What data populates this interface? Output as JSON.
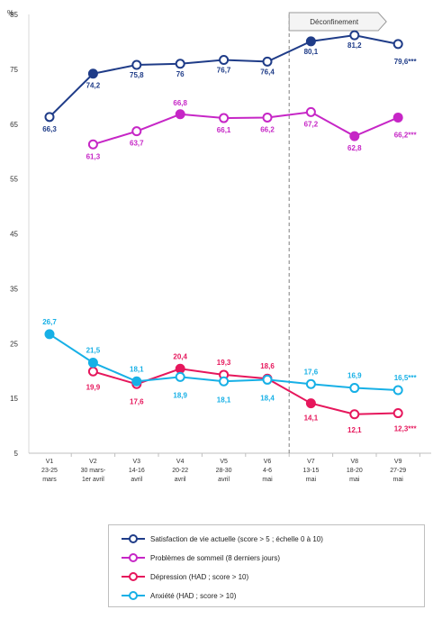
{
  "chart_data": {
    "type": "line",
    "y_unit_label": "%",
    "ylim": [
      5,
      85
    ],
    "yticks": [
      5,
      15,
      25,
      35,
      45,
      55,
      65,
      75,
      85
    ],
    "grid": false,
    "annotation": "Déconfinement",
    "deconfinement_after_category_index": 5,
    "categories": [
      [
        "V1",
        "23-25",
        "mars"
      ],
      [
        "V2",
        "30 mars-",
        "1er avril"
      ],
      [
        "V3",
        "14-16",
        "avril"
      ],
      [
        "V4",
        "20-22",
        "avril"
      ],
      [
        "V5",
        "28-30",
        "avril"
      ],
      [
        "V6",
        "4-6",
        "mai"
      ],
      [
        "V7",
        "13-15",
        "mai"
      ],
      [
        "V8",
        "18-20",
        "mai"
      ],
      [
        "V9",
        "27-29",
        "mai"
      ]
    ],
    "series": [
      {
        "name": "Satisfaction de vie actuelle (score > 5 ; échelle 0 à 10)",
        "color": "#1f3c88",
        "values": [
          66.3,
          74.2,
          75.8,
          76,
          76.7,
          76.4,
          80.1,
          81.2,
          79.6
        ],
        "labels": [
          "66,3",
          "74,2",
          "75,8",
          "76",
          "76,7",
          "76,4",
          "80,1",
          "81,2",
          "79,6***"
        ],
        "filled": [
          false,
          true,
          false,
          false,
          false,
          false,
          true,
          false,
          false
        ]
      },
      {
        "name": "Problèmes de sommeil (8 derniers jours)",
        "color": "#c626c6",
        "values": [
          null,
          61.3,
          63.7,
          66.8,
          66.1,
          66.2,
          67.2,
          62.8,
          66.2
        ],
        "labels": [
          "",
          "61,3",
          "63,7",
          "66,8",
          "66,1",
          "66,2",
          "67,2",
          "62,8",
          "66,2***"
        ],
        "filled": [
          false,
          false,
          false,
          true,
          false,
          false,
          false,
          true,
          true
        ]
      },
      {
        "name": "Dépression (HAD ; score > 10)",
        "color": "#e6175c",
        "values": [
          null,
          19.9,
          17.6,
          20.4,
          19.3,
          18.6,
          14.1,
          12.1,
          12.3
        ],
        "labels": [
          "",
          "19,9",
          "17,6",
          "20,4",
          "19,3",
          "18,6",
          "14,1",
          "12,1",
          "12,3***"
        ],
        "filled": [
          false,
          false,
          false,
          true,
          false,
          false,
          true,
          false,
          false
        ]
      },
      {
        "name": "Anxiété (HAD ; score > 10)",
        "color": "#17b0e6",
        "values": [
          26.7,
          21.5,
          18.1,
          18.9,
          18.1,
          18.4,
          17.6,
          16.9,
          16.5
        ],
        "labels": [
          "26,7",
          "21,5",
          "18,1",
          "18,9",
          "18,1",
          "18,4",
          "17,6",
          "16,9",
          "16,5***"
        ],
        "filled": [
          true,
          true,
          true,
          false,
          false,
          false,
          false,
          false,
          false
        ]
      }
    ]
  }
}
